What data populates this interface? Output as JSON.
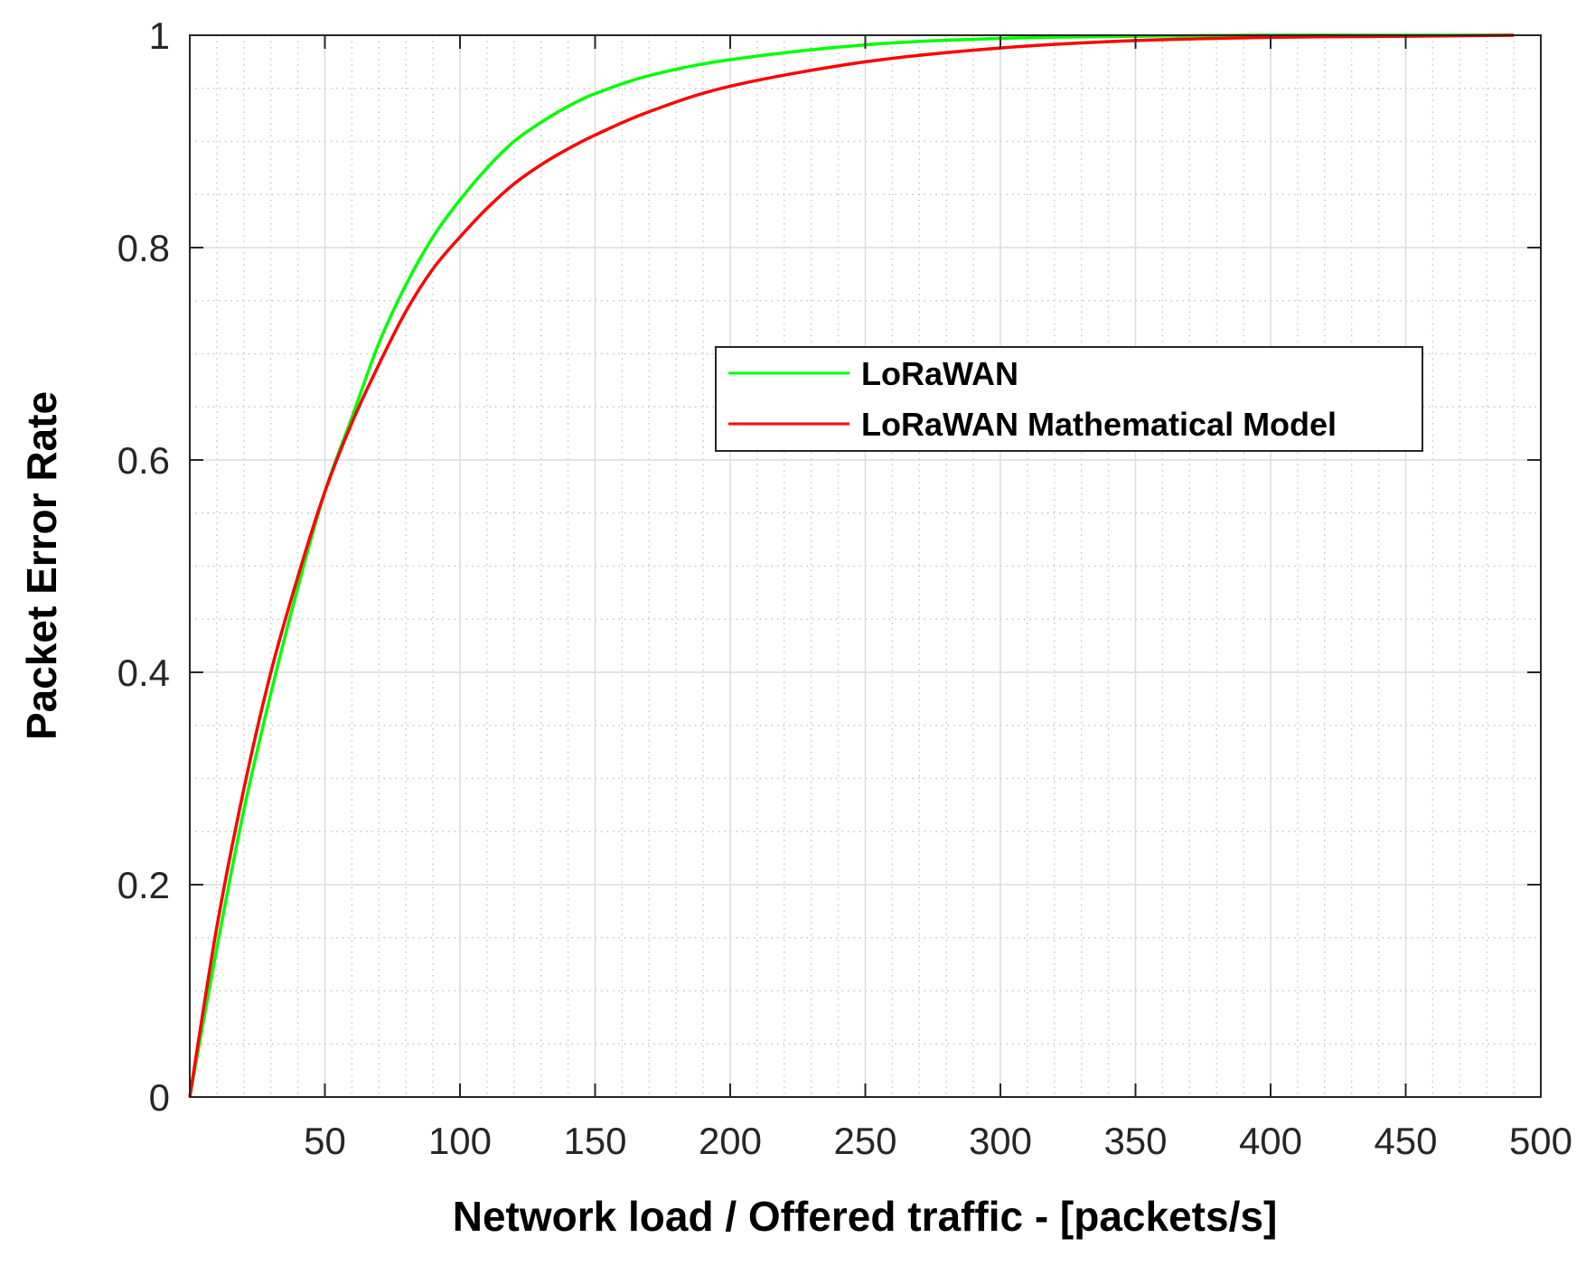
{
  "chart_data": {
    "type": "line",
    "title": "",
    "xlabel": "Network load / Offered traffic - [packets/s]",
    "ylabel": "Packet Error Rate",
    "xlim": [
      0,
      500
    ],
    "ylim": [
      0,
      1
    ],
    "xticks": [
      50,
      100,
      150,
      200,
      250,
      300,
      350,
      400,
      450,
      500
    ],
    "yticks": [
      0,
      0.2,
      0.4,
      0.6,
      0.8,
      1
    ],
    "xtick_labels": [
      "50",
      "100",
      "150",
      "200",
      "250",
      "300",
      "350",
      "400",
      "450",
      "500"
    ],
    "ytick_labels": [
      "0",
      "0.2",
      "0.4",
      "0.6",
      "0.8",
      "1"
    ],
    "grid": "major and minor",
    "legend_position": "center-right",
    "series": [
      {
        "name": "LoRaWAN",
        "color": "#00ff00",
        "x": [
          0,
          10,
          20,
          30,
          40,
          50,
          60,
          70,
          80,
          90,
          100,
          110,
          120,
          130,
          140,
          150,
          170,
          200,
          250,
          300,
          350,
          400,
          450,
          490
        ],
        "y": [
          0,
          0.14,
          0.27,
          0.38,
          0.48,
          0.57,
          0.64,
          0.71,
          0.765,
          0.81,
          0.845,
          0.875,
          0.9,
          0.918,
          0.933,
          0.945,
          0.962,
          0.977,
          0.991,
          0.997,
          0.999,
          1.0,
          1.0,
          1.0
        ]
      },
      {
        "name": "LoRaWAN Mathematical Model",
        "color": "#ff0000",
        "x": [
          0,
          10,
          20,
          30,
          40,
          50,
          60,
          70,
          80,
          90,
          100,
          110,
          120,
          130,
          140,
          150,
          170,
          200,
          250,
          300,
          350,
          400,
          450,
          490
        ],
        "y": [
          0,
          0.16,
          0.29,
          0.4,
          0.49,
          0.57,
          0.635,
          0.69,
          0.74,
          0.78,
          0.81,
          0.837,
          0.86,
          0.878,
          0.893,
          0.906,
          0.928,
          0.952,
          0.975,
          0.988,
          0.995,
          0.998,
          0.999,
          1.0
        ]
      }
    ]
  }
}
